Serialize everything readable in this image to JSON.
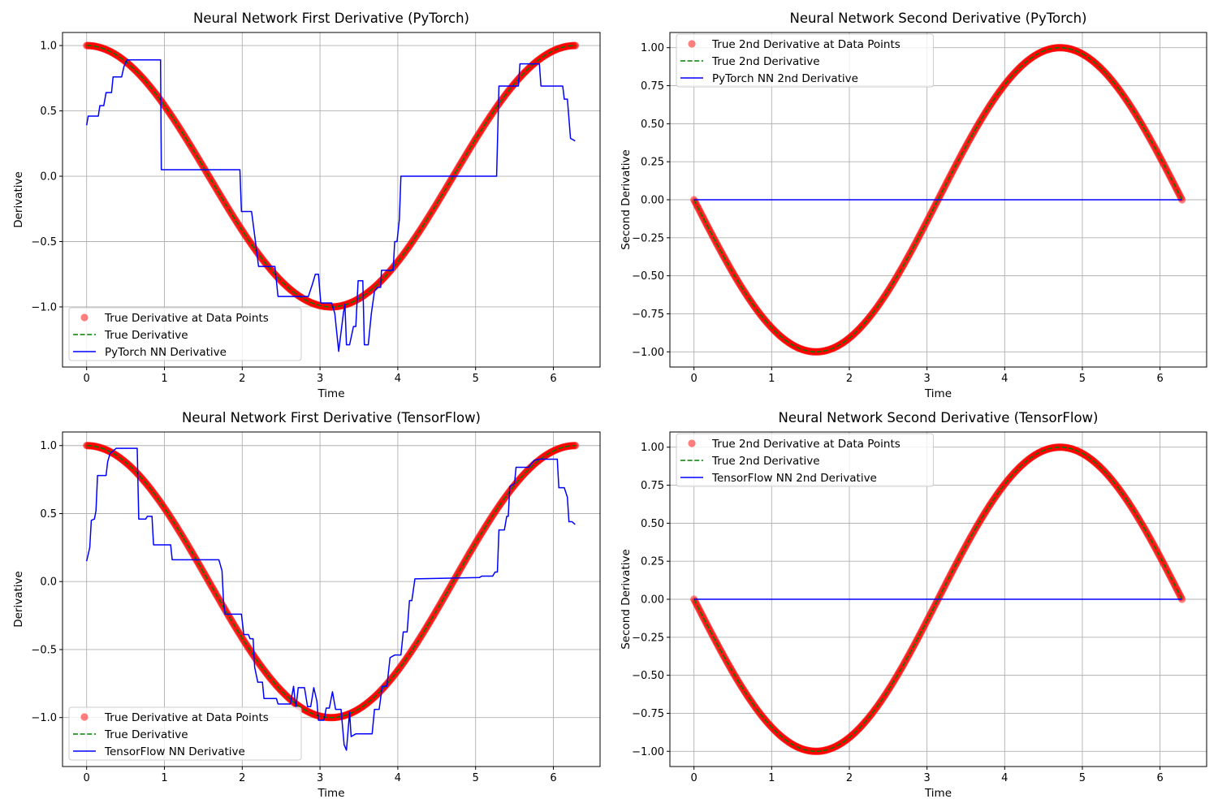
{
  "colors": {
    "scatter": "#ff0000",
    "true_line": "#008000",
    "nn_line": "#0000ff"
  },
  "chart_data": [
    {
      "type": "line",
      "title": "Neural Network First Derivative (PyTorch)",
      "xlabel": "Time",
      "ylabel": "Derivative",
      "xlim": [
        -0.31,
        6.6
      ],
      "ylim": [
        -1.46,
        1.1
      ],
      "xticks": [
        0,
        1,
        2,
        3,
        4,
        5,
        6
      ],
      "yticks": [
        -1.0,
        -0.5,
        0.0,
        0.5,
        1.0
      ],
      "grid": true,
      "legend_loc": "lower left",
      "series": [
        {
          "name": "True Derivative at Data Points",
          "kind": "scatter",
          "function": "cos",
          "x_range": [
            0,
            6.283
          ]
        },
        {
          "name": "True Derivative",
          "kind": "dashed-line",
          "function": "cos",
          "x_range": [
            0,
            6.283
          ]
        },
        {
          "name": "PyTorch NN Derivative",
          "kind": "line",
          "points": [
            [
              0.0,
              0.39
            ],
            [
              0.02,
              0.46
            ],
            [
              0.1,
              0.46
            ],
            [
              0.15,
              0.46
            ],
            [
              0.17,
              0.54
            ],
            [
              0.22,
              0.54
            ],
            [
              0.25,
              0.64
            ],
            [
              0.32,
              0.64
            ],
            [
              0.34,
              0.76
            ],
            [
              0.45,
              0.76
            ],
            [
              0.48,
              0.84
            ],
            [
              0.52,
              0.89
            ],
            [
              0.95,
              0.89
            ],
            [
              0.96,
              0.05
            ],
            [
              1.97,
              0.05
            ],
            [
              1.99,
              -0.27
            ],
            [
              2.12,
              -0.27
            ],
            [
              2.17,
              -0.5
            ],
            [
              2.21,
              -0.69
            ],
            [
              2.42,
              -0.69
            ],
            [
              2.46,
              -0.92
            ],
            [
              2.85,
              -0.92
            ],
            [
              2.9,
              -0.83
            ],
            [
              2.94,
              -0.75
            ],
            [
              2.98,
              -0.75
            ],
            [
              3.01,
              -0.97
            ],
            [
              3.15,
              -0.97
            ],
            [
              3.19,
              -1.05
            ],
            [
              3.24,
              -1.34
            ],
            [
              3.3,
              -1.05
            ],
            [
              3.32,
              -0.98
            ],
            [
              3.34,
              -1.29
            ],
            [
              3.38,
              -1.29
            ],
            [
              3.43,
              -1.15
            ],
            [
              3.46,
              -1.15
            ],
            [
              3.49,
              -0.8
            ],
            [
              3.55,
              -0.8
            ],
            [
              3.57,
              -1.29
            ],
            [
              3.62,
              -1.29
            ],
            [
              3.66,
              -1.05
            ],
            [
              3.7,
              -0.88
            ],
            [
              3.74,
              -0.85
            ],
            [
              3.78,
              -0.85
            ],
            [
              3.79,
              -0.72
            ],
            [
              3.94,
              -0.72
            ],
            [
              3.96,
              -0.5
            ],
            [
              3.99,
              -0.5
            ],
            [
              4.02,
              -0.33
            ],
            [
              4.04,
              0.0
            ],
            [
              5.27,
              0.0
            ],
            [
              5.3,
              0.69
            ],
            [
              5.55,
              0.69
            ],
            [
              5.57,
              0.86
            ],
            [
              5.82,
              0.86
            ],
            [
              5.84,
              0.69
            ],
            [
              6.12,
              0.69
            ],
            [
              6.14,
              0.59
            ],
            [
              6.18,
              0.59
            ],
            [
              6.22,
              0.29
            ],
            [
              6.28,
              0.27
            ]
          ]
        }
      ]
    },
    {
      "type": "line",
      "title": "Neural Network Second Derivative (PyTorch)",
      "xlabel": "Time",
      "ylabel": "Second Derivative",
      "xlim": [
        -0.31,
        6.6
      ],
      "ylim": [
        -1.1,
        1.1
      ],
      "xticks": [
        0,
        1,
        2,
        3,
        4,
        5,
        6
      ],
      "yticks": [
        -1.0,
        -0.75,
        -0.5,
        -0.25,
        0.0,
        0.25,
        0.5,
        0.75,
        1.0
      ],
      "grid": true,
      "legend_loc": "upper left",
      "series": [
        {
          "name": "True 2nd Derivative at Data Points",
          "kind": "scatter",
          "function": "-sin",
          "x_range": [
            0,
            6.283
          ]
        },
        {
          "name": "True 2nd Derivative",
          "kind": "dashed-line",
          "function": "-sin",
          "x_range": [
            0,
            6.283
          ]
        },
        {
          "name": "PyTorch NN 2nd Derivative",
          "kind": "line",
          "points": [
            [
              0.0,
              0.0
            ],
            [
              6.283,
              0.0
            ]
          ]
        }
      ]
    },
    {
      "type": "line",
      "title": "Neural Network First Derivative (TensorFlow)",
      "xlabel": "Time",
      "ylabel": "Derivative",
      "xlim": [
        -0.31,
        6.6
      ],
      "ylim": [
        -1.36,
        1.1
      ],
      "xticks": [
        0,
        1,
        2,
        3,
        4,
        5,
        6
      ],
      "yticks": [
        -1.0,
        -0.5,
        0.0,
        0.5,
        1.0
      ],
      "grid": true,
      "legend_loc": "lower left",
      "series": [
        {
          "name": "True Derivative at Data Points",
          "kind": "scatter",
          "function": "cos",
          "x_range": [
            0,
            6.283
          ]
        },
        {
          "name": "True Derivative",
          "kind": "dashed-line",
          "function": "cos",
          "x_range": [
            0,
            6.283
          ]
        },
        {
          "name": "TensorFlow NN Derivative",
          "kind": "line",
          "points": [
            [
              0.0,
              0.15
            ],
            [
              0.04,
              0.25
            ],
            [
              0.06,
              0.45
            ],
            [
              0.1,
              0.46
            ],
            [
              0.12,
              0.52
            ],
            [
              0.14,
              0.78
            ],
            [
              0.25,
              0.78
            ],
            [
              0.27,
              0.88
            ],
            [
              0.3,
              0.94
            ],
            [
              0.38,
              0.98
            ],
            [
              0.65,
              0.98
            ],
            [
              0.67,
              0.46
            ],
            [
              0.76,
              0.46
            ],
            [
              0.78,
              0.48
            ],
            [
              0.84,
              0.48
            ],
            [
              0.86,
              0.27
            ],
            [
              1.08,
              0.27
            ],
            [
              1.1,
              0.16
            ],
            [
              1.7,
              0.16
            ],
            [
              1.74,
              0.08
            ],
            [
              1.76,
              -0.15
            ],
            [
              1.78,
              -0.24
            ],
            [
              1.99,
              -0.24
            ],
            [
              2.02,
              -0.39
            ],
            [
              2.08,
              -0.39
            ],
            [
              2.1,
              -0.42
            ],
            [
              2.14,
              -0.42
            ],
            [
              2.16,
              -0.63
            ],
            [
              2.2,
              -0.74
            ],
            [
              2.26,
              -0.74
            ],
            [
              2.28,
              -0.86
            ],
            [
              2.44,
              -0.86
            ],
            [
              2.46,
              -0.9
            ],
            [
              2.62,
              -0.9
            ],
            [
              2.66,
              -0.77
            ],
            [
              2.69,
              -0.93
            ],
            [
              2.72,
              -0.78
            ],
            [
              2.8,
              -0.78
            ],
            [
              2.84,
              -0.92
            ],
            [
              2.88,
              -0.92
            ],
            [
              2.92,
              -0.78
            ],
            [
              2.96,
              -0.88
            ],
            [
              2.98,
              -1.02
            ],
            [
              3.05,
              -1.02
            ],
            [
              3.08,
              -0.93
            ],
            [
              3.12,
              -0.93
            ],
            [
              3.16,
              -0.81
            ],
            [
              3.2,
              -0.94
            ],
            [
              3.27,
              -0.94
            ],
            [
              3.31,
              -1.2
            ],
            [
              3.34,
              -1.24
            ],
            [
              3.38,
              -0.96
            ],
            [
              3.4,
              -1.14
            ],
            [
              3.46,
              -1.12
            ],
            [
              3.67,
              -1.12
            ],
            [
              3.7,
              -0.94
            ],
            [
              3.76,
              -0.94
            ],
            [
              3.8,
              -0.77
            ],
            [
              3.86,
              -0.77
            ],
            [
              3.9,
              -0.56
            ],
            [
              3.96,
              -0.54
            ],
            [
              4.04,
              -0.54
            ],
            [
              4.07,
              -0.37
            ],
            [
              4.12,
              -0.37
            ],
            [
              4.15,
              -0.14
            ],
            [
              4.18,
              -0.14
            ],
            [
              4.22,
              0.02
            ],
            [
              5.05,
              0.03
            ],
            [
              5.08,
              0.04
            ],
            [
              5.22,
              0.04
            ],
            [
              5.25,
              0.07
            ],
            [
              5.28,
              0.07
            ],
            [
              5.3,
              0.38
            ],
            [
              5.37,
              0.38
            ],
            [
              5.4,
              0.48
            ],
            [
              5.42,
              0.48
            ],
            [
              5.44,
              0.7
            ],
            [
              5.5,
              0.72
            ],
            [
              5.52,
              0.84
            ],
            [
              5.68,
              0.84
            ],
            [
              5.75,
              0.89
            ],
            [
              5.81,
              0.9
            ],
            [
              6.05,
              0.9
            ],
            [
              6.07,
              0.69
            ],
            [
              6.14,
              0.69
            ],
            [
              6.18,
              0.62
            ],
            [
              6.2,
              0.44
            ],
            [
              6.24,
              0.44
            ],
            [
              6.28,
              0.42
            ]
          ]
        }
      ]
    },
    {
      "type": "line",
      "title": "Neural Network Second Derivative (TensorFlow)",
      "xlabel": "Time",
      "ylabel": "Second Derivative",
      "xlim": [
        -0.31,
        6.6
      ],
      "ylim": [
        -1.1,
        1.1
      ],
      "xticks": [
        0,
        1,
        2,
        3,
        4,
        5,
        6
      ],
      "yticks": [
        -1.0,
        -0.75,
        -0.5,
        -0.25,
        0.0,
        0.25,
        0.5,
        0.75,
        1.0
      ],
      "grid": true,
      "legend_loc": "upper left",
      "series": [
        {
          "name": "True 2nd Derivative at Data Points",
          "kind": "scatter",
          "function": "-sin",
          "x_range": [
            0,
            6.283
          ]
        },
        {
          "name": "True 2nd Derivative",
          "kind": "dashed-line",
          "function": "-sin",
          "x_range": [
            0,
            6.283
          ]
        },
        {
          "name": "TensorFlow NN 2nd Derivative",
          "kind": "line",
          "points": [
            [
              0.0,
              0.0
            ],
            [
              6.283,
              0.0
            ]
          ]
        }
      ]
    }
  ]
}
